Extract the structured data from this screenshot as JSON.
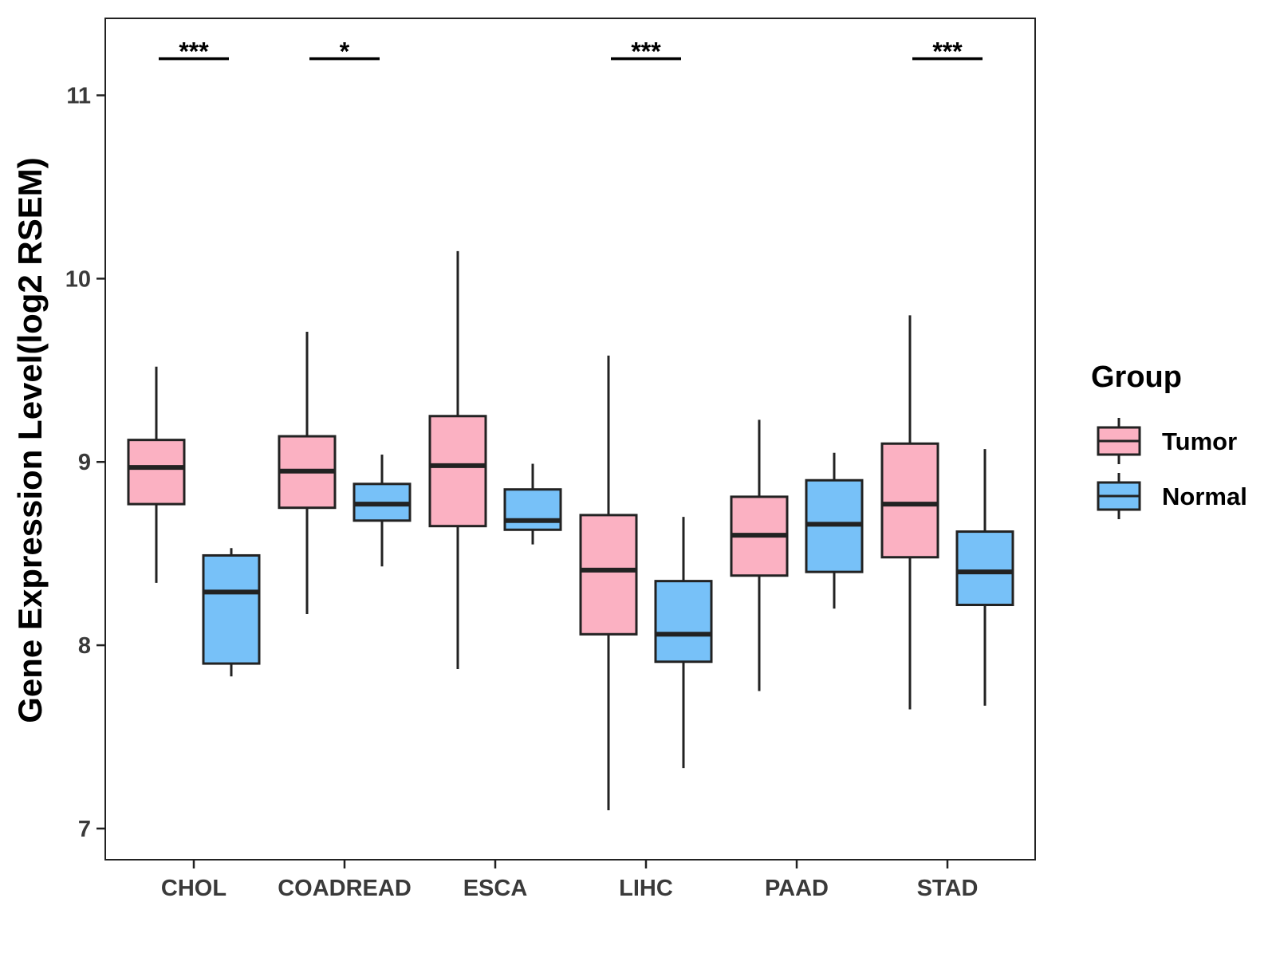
{
  "chart_data": {
    "type": "boxplot",
    "title": "",
    "xlabel": "",
    "ylabel": "Gene Expression Level(log2 RSEM)",
    "ylim": [
      6.83,
      11.42
    ],
    "yticks": [
      7,
      8,
      9,
      10,
      11
    ],
    "categories": [
      "CHOL",
      "COADREAD",
      "ESCA",
      "LIHC",
      "PAAD",
      "STAD"
    ],
    "legend": {
      "title": "Group",
      "position": "right",
      "entries": [
        "Tumor",
        "Normal"
      ]
    },
    "series": [
      {
        "name": "Tumor",
        "color": "#FBB1C2",
        "boxes": [
          {
            "whisker_low": 8.34,
            "q1": 8.77,
            "median": 8.97,
            "q3": 9.12,
            "whisker_high": 9.52
          },
          {
            "whisker_low": 8.17,
            "q1": 8.75,
            "median": 8.95,
            "q3": 9.14,
            "whisker_high": 9.71
          },
          {
            "whisker_low": 7.87,
            "q1": 8.65,
            "median": 8.98,
            "q3": 9.25,
            "whisker_high": 10.15
          },
          {
            "whisker_low": 7.1,
            "q1": 8.06,
            "median": 8.41,
            "q3": 8.71,
            "whisker_high": 9.58
          },
          {
            "whisker_low": 7.75,
            "q1": 8.38,
            "median": 8.6,
            "q3": 8.81,
            "whisker_high": 9.23
          },
          {
            "whisker_low": 7.65,
            "q1": 8.48,
            "median": 8.77,
            "q3": 9.1,
            "whisker_high": 9.8
          }
        ]
      },
      {
        "name": "Normal",
        "color": "#77C1F8",
        "boxes": [
          {
            "whisker_low": 7.83,
            "q1": 7.9,
            "median": 8.29,
            "q3": 8.49,
            "whisker_high": 8.53
          },
          {
            "whisker_low": 8.43,
            "q1": 8.68,
            "median": 8.77,
            "q3": 8.88,
            "whisker_high": 9.04
          },
          {
            "whisker_low": 8.55,
            "q1": 8.63,
            "median": 8.68,
            "q3": 8.85,
            "whisker_high": 8.99
          },
          {
            "whisker_low": 7.33,
            "q1": 7.91,
            "median": 8.06,
            "q3": 8.35,
            "whisker_high": 8.7
          },
          {
            "whisker_low": 8.2,
            "q1": 8.4,
            "median": 8.66,
            "q3": 8.9,
            "whisker_high": 9.05
          },
          {
            "whisker_low": 7.67,
            "q1": 8.22,
            "median": 8.4,
            "q3": 8.62,
            "whisker_high": 9.07
          }
        ]
      }
    ],
    "significance": [
      {
        "category": "CHOL",
        "label": "***",
        "y": 11.2
      },
      {
        "category": "COADREAD",
        "label": "*",
        "y": 11.2
      },
      {
        "category": "ESCA",
        "label": "",
        "y": 11.2
      },
      {
        "category": "LIHC",
        "label": "***",
        "y": 11.2
      },
      {
        "category": "PAAD",
        "label": "",
        "y": 11.2
      },
      {
        "category": "STAD",
        "label": "***",
        "y": 11.2
      }
    ],
    "grid": false
  },
  "colors": {
    "tumor": "#FBB1C2",
    "normal": "#77C1F8",
    "outline": "#222222",
    "axis": "#222222"
  }
}
